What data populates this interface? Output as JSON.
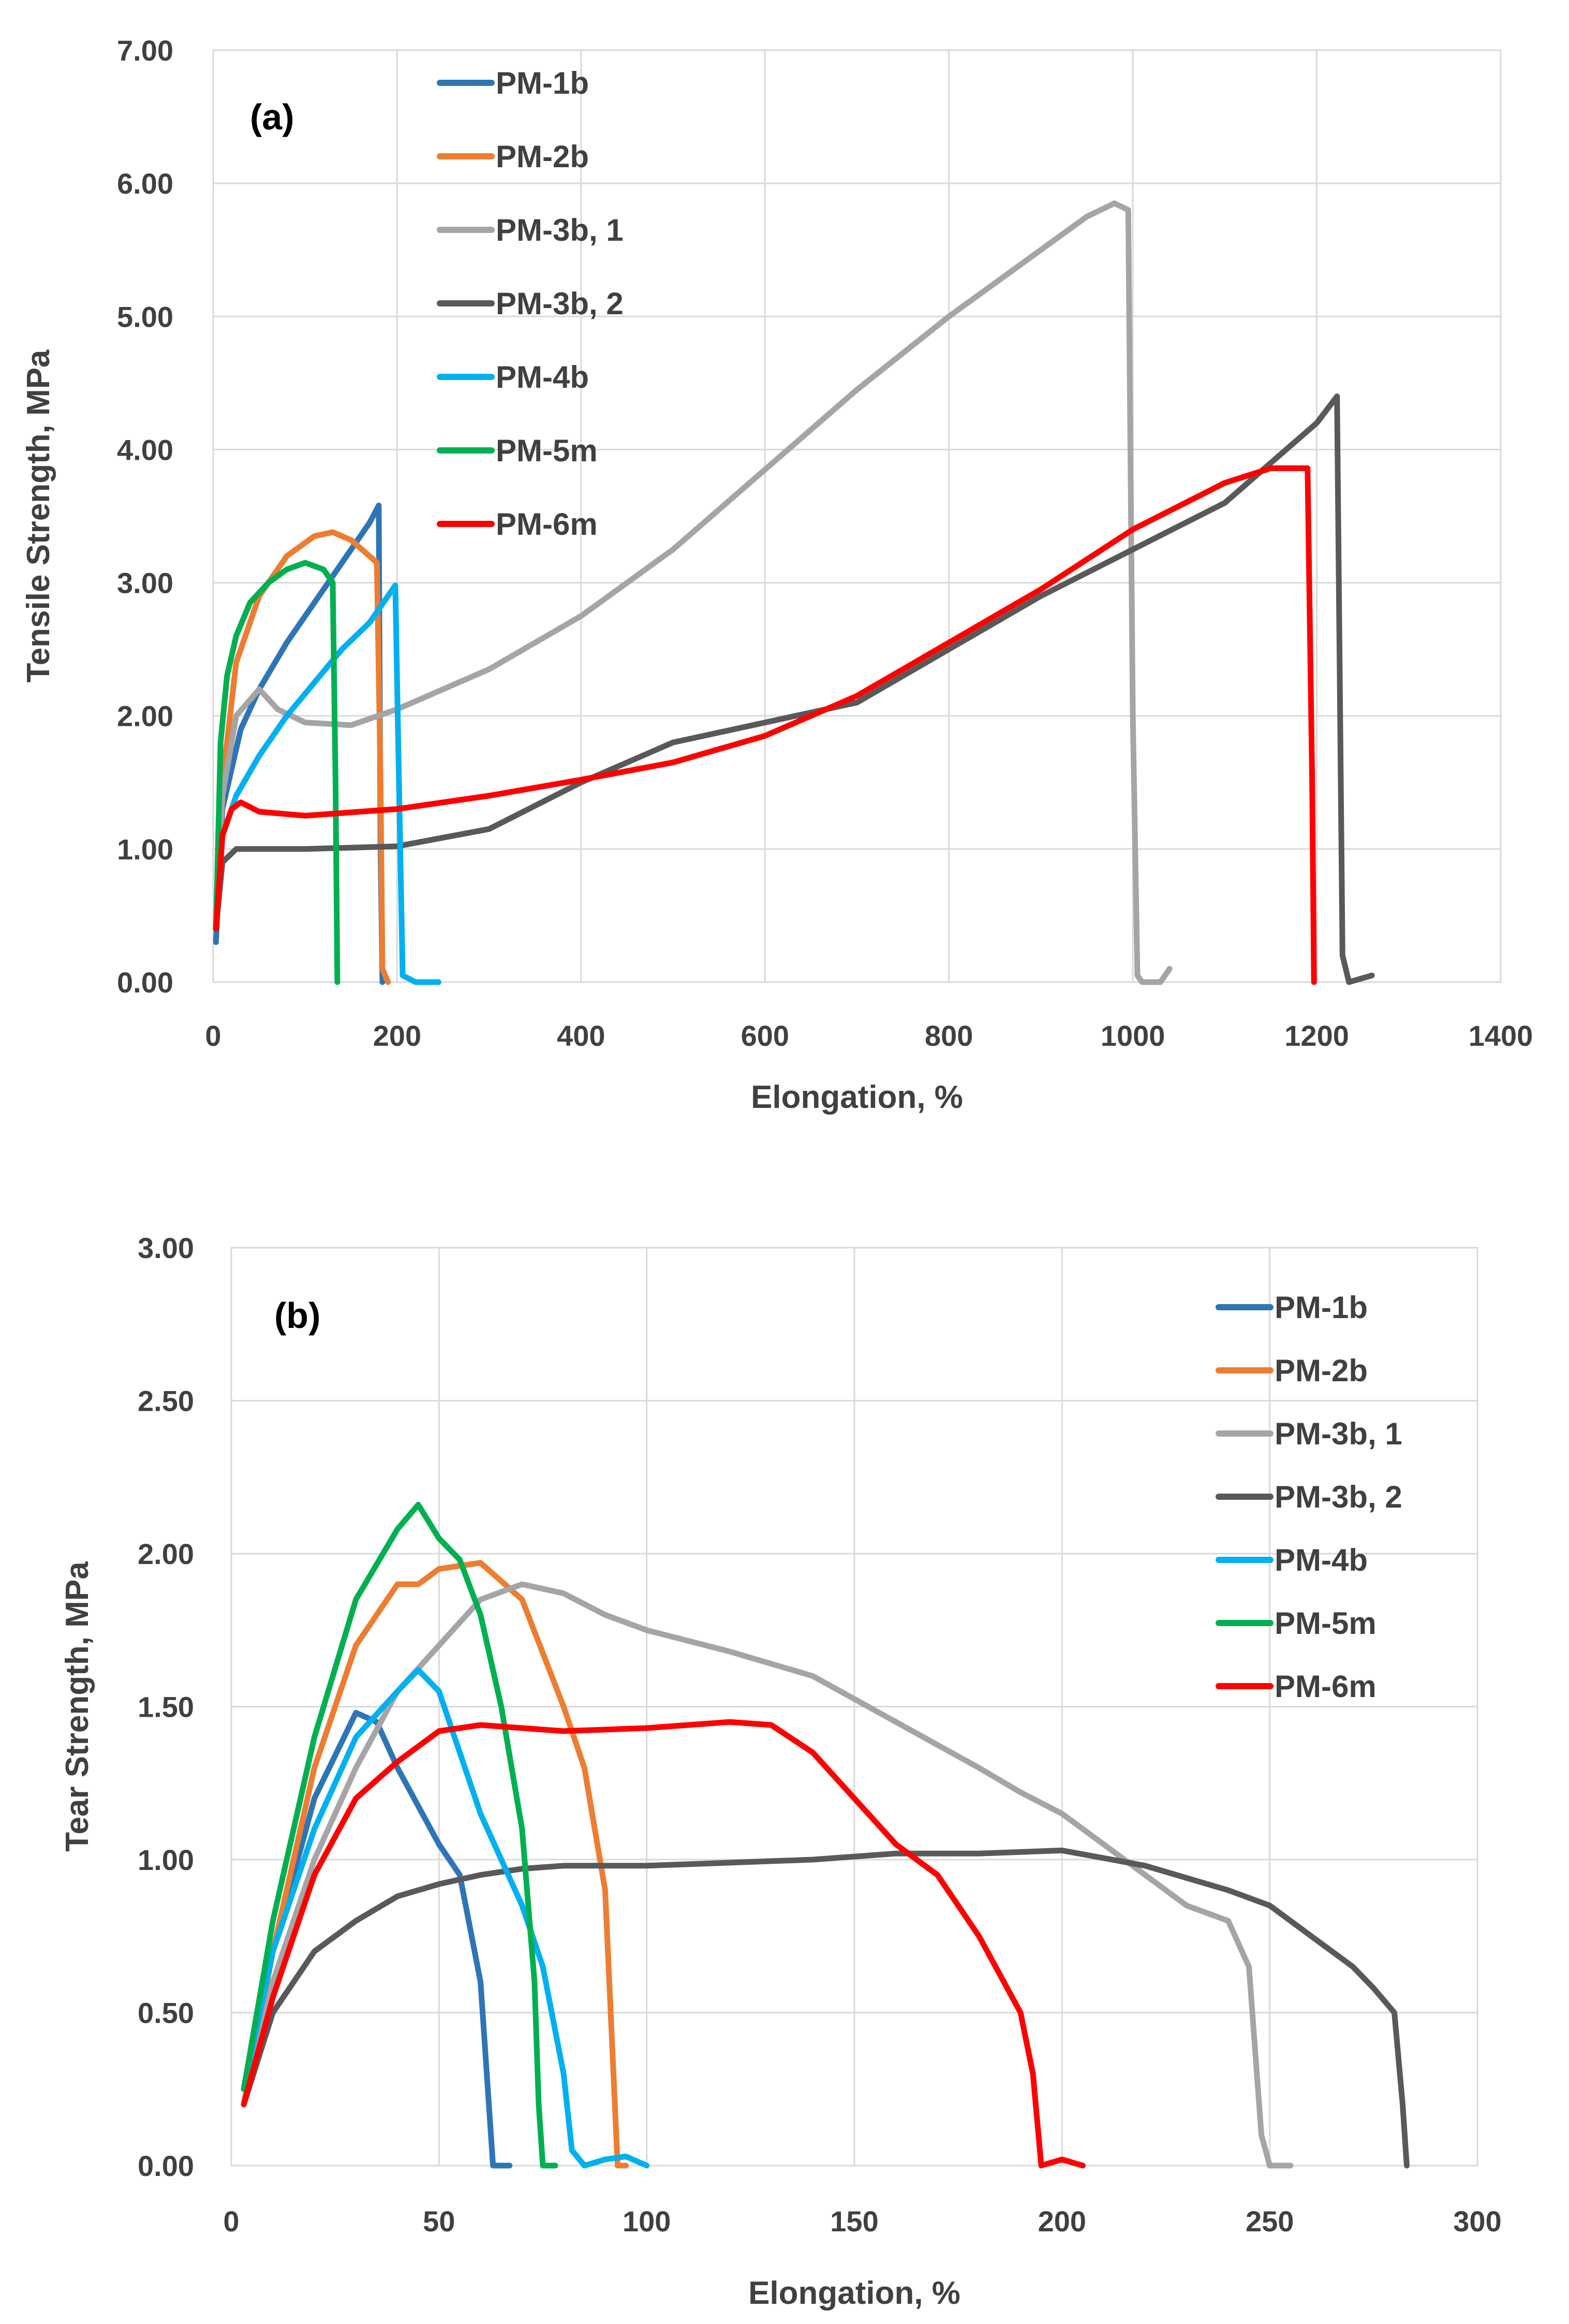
{
  "chart_data": [
    {
      "id": "a",
      "type": "line",
      "panel_label": "(a)",
      "xlabel": "Elongation, %",
      "ylabel": "Tensile Strength, MPa",
      "xlim": [
        0,
        1400
      ],
      "ylim": [
        0,
        7
      ],
      "xticks": [
        "0",
        "200",
        "400",
        "600",
        "800",
        "1000",
        "1200",
        "1400"
      ],
      "yticks": [
        "0.00",
        "1.00",
        "2.00",
        "3.00",
        "4.00",
        "5.00",
        "6.00",
        "7.00"
      ],
      "legend_position": "top-left",
      "series": [
        {
          "name": "PM-1b",
          "color": "#2e75b6",
          "x": [
            3,
            10,
            30,
            50,
            80,
            110,
            140,
            170,
            180,
            182,
            184
          ],
          "y": [
            0.3,
            1.3,
            1.9,
            2.2,
            2.55,
            2.85,
            3.15,
            3.45,
            3.58,
            1.0,
            0.0
          ]
        },
        {
          "name": "PM-2b",
          "color": "#ed7d31",
          "x": [
            3,
            10,
            25,
            50,
            80,
            110,
            130,
            150,
            170,
            178,
            182,
            184,
            190
          ],
          "y": [
            0.4,
            1.5,
            2.4,
            2.9,
            3.2,
            3.35,
            3.38,
            3.32,
            3.2,
            3.15,
            1.5,
            0.1,
            0.0
          ]
        },
        {
          "name": "PM-3b, 1",
          "color": "#a5a5a5",
          "x": [
            3,
            10,
            25,
            50,
            70,
            100,
            150,
            200,
            250,
            300,
            400,
            500,
            600,
            700,
            800,
            900,
            950,
            980,
            995,
            1000,
            1005,
            1010,
            1030,
            1040
          ],
          "y": [
            0.4,
            1.4,
            2.0,
            2.2,
            2.05,
            1.95,
            1.93,
            2.05,
            2.2,
            2.35,
            2.75,
            3.25,
            3.85,
            4.45,
            5.0,
            5.5,
            5.75,
            5.85,
            5.8,
            2.0,
            0.05,
            0.0,
            0.0,
            0.1
          ]
        },
        {
          "name": "PM-3b, 2",
          "color": "#595959",
          "x": [
            3,
            10,
            25,
            100,
            200,
            300,
            400,
            500,
            600,
            700,
            800,
            900,
            1000,
            1100,
            1150,
            1200,
            1222,
            1228,
            1235,
            1260
          ],
          "y": [
            0.4,
            0.9,
            1.0,
            1.0,
            1.02,
            1.15,
            1.5,
            1.8,
            1.95,
            2.1,
            2.5,
            2.9,
            3.25,
            3.6,
            3.9,
            4.2,
            4.4,
            0.2,
            0.0,
            0.05
          ]
        },
        {
          "name": "PM-4b",
          "color": "#00b0f0",
          "x": [
            3,
            10,
            25,
            50,
            80,
            110,
            140,
            170,
            190,
            198,
            202,
            206,
            220,
            245
          ],
          "y": [
            0.4,
            1.1,
            1.4,
            1.7,
            2.0,
            2.25,
            2.5,
            2.7,
            2.9,
            2.98,
            1.5,
            0.05,
            0.0,
            0.0
          ]
        },
        {
          "name": "PM-5m",
          "color": "#00b050",
          "x": [
            3,
            8,
            15,
            25,
            40,
            60,
            80,
            100,
            120,
            130,
            133,
            135
          ],
          "y": [
            0.4,
            1.8,
            2.3,
            2.6,
            2.85,
            3.0,
            3.1,
            3.15,
            3.1,
            3.0,
            1.5,
            0.0
          ]
        },
        {
          "name": "PM-6m",
          "color": "#ff0000",
          "x": [
            3,
            10,
            20,
            30,
            50,
            100,
            200,
            300,
            400,
            500,
            600,
            700,
            800,
            900,
            1000,
            1100,
            1150,
            1190,
            1195,
            1197
          ],
          "y": [
            0.4,
            1.1,
            1.3,
            1.35,
            1.28,
            1.25,
            1.3,
            1.4,
            1.52,
            1.65,
            1.85,
            2.15,
            2.55,
            2.95,
            3.4,
            3.75,
            3.86,
            3.86,
            1.5,
            0.0
          ]
        }
      ]
    },
    {
      "id": "b",
      "type": "line",
      "panel_label": "(b)",
      "xlabel": "Elongation, %",
      "ylabel": "Tear Strength, MPa",
      "xlim": [
        0,
        300
      ],
      "ylim": [
        0,
        3
      ],
      "xticks": [
        "0",
        "50",
        "100",
        "150",
        "200",
        "250",
        "300"
      ],
      "yticks": [
        "0.00",
        "0.50",
        "1.00",
        "1.50",
        "2.00",
        "2.50",
        "3.00"
      ],
      "legend_position": "top-right",
      "series": [
        {
          "name": "PM-1b",
          "color": "#2e75b6",
          "x": [
            3,
            10,
            20,
            30,
            35,
            40,
            50,
            55,
            60,
            62,
            63,
            65,
            67
          ],
          "y": [
            0.2,
            0.7,
            1.2,
            1.48,
            1.45,
            1.3,
            1.05,
            0.95,
            0.6,
            0.2,
            0.0,
            0.0,
            0.0
          ]
        },
        {
          "name": "PM-2b",
          "color": "#ed7d31",
          "x": [
            3,
            10,
            20,
            30,
            40,
            45,
            50,
            60,
            70,
            80,
            85,
            90,
            92,
            93,
            95
          ],
          "y": [
            0.2,
            0.7,
            1.3,
            1.7,
            1.9,
            1.9,
            1.95,
            1.97,
            1.85,
            1.5,
            1.3,
            0.9,
            0.3,
            0.0,
            0.0
          ]
        },
        {
          "name": "PM-3b, 1",
          "color": "#a5a5a5",
          "x": [
            3,
            10,
            20,
            30,
            40,
            50,
            60,
            70,
            80,
            90,
            100,
            120,
            140,
            160,
            180,
            190,
            200,
            210,
            220,
            230,
            240,
            245,
            248,
            250,
            255
          ],
          "y": [
            0.2,
            0.6,
            1.0,
            1.3,
            1.55,
            1.7,
            1.85,
            1.9,
            1.87,
            1.8,
            1.75,
            1.68,
            1.6,
            1.45,
            1.3,
            1.22,
            1.15,
            1.05,
            0.95,
            0.85,
            0.8,
            0.65,
            0.1,
            0.0,
            0.0
          ]
        },
        {
          "name": "PM-3b, 2",
          "color": "#595959",
          "x": [
            3,
            10,
            20,
            30,
            40,
            50,
            60,
            70,
            80,
            100,
            120,
            140,
            160,
            180,
            200,
            220,
            240,
            250,
            260,
            270,
            275,
            280,
            282,
            283
          ],
          "y": [
            0.2,
            0.5,
            0.7,
            0.8,
            0.88,
            0.92,
            0.95,
            0.97,
            0.98,
            0.98,
            0.99,
            1.0,
            1.02,
            1.02,
            1.03,
            0.98,
            0.9,
            0.85,
            0.75,
            0.65,
            0.58,
            0.5,
            0.2,
            0.0
          ]
        },
        {
          "name": "PM-4b",
          "color": "#00b0f0",
          "x": [
            3,
            10,
            20,
            30,
            40,
            45,
            50,
            55,
            60,
            70,
            75,
            80,
            82,
            85,
            90,
            95,
            100
          ],
          "y": [
            0.25,
            0.7,
            1.1,
            1.4,
            1.55,
            1.62,
            1.55,
            1.35,
            1.15,
            0.85,
            0.65,
            0.3,
            0.05,
            0.0,
            0.02,
            0.03,
            0.0
          ]
        },
        {
          "name": "PM-5m",
          "color": "#00b050",
          "x": [
            3,
            10,
            20,
            30,
            40,
            45,
            50,
            55,
            60,
            65,
            70,
            73,
            74,
            75,
            78
          ],
          "y": [
            0.25,
            0.8,
            1.4,
            1.85,
            2.08,
            2.16,
            2.05,
            1.98,
            1.8,
            1.5,
            1.1,
            0.6,
            0.2,
            0.0,
            0.0
          ]
        },
        {
          "name": "PM-6m",
          "color": "#ff0000",
          "x": [
            3,
            10,
            20,
            30,
            40,
            50,
            60,
            80,
            100,
            120,
            130,
            140,
            150,
            160,
            170,
            180,
            190,
            193,
            195,
            200,
            205
          ],
          "y": [
            0.2,
            0.55,
            0.95,
            1.2,
            1.32,
            1.42,
            1.44,
            1.42,
            1.43,
            1.45,
            1.44,
            1.35,
            1.2,
            1.05,
            0.95,
            0.75,
            0.5,
            0.3,
            0.0,
            0.02,
            0.0
          ]
        }
      ]
    }
  ]
}
